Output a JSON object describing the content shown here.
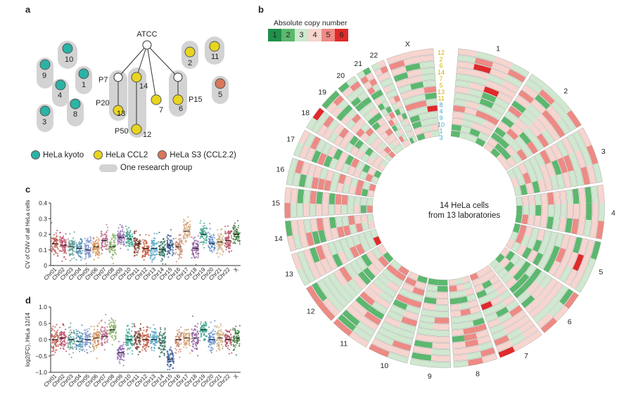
{
  "panels": {
    "a": "a",
    "b": "b",
    "c": "c",
    "d": "d"
  },
  "lineage": {
    "root": "ATCC",
    "nodes": [
      {
        "id": "P7",
        "label": "P7"
      },
      {
        "id": "14",
        "label": "14"
      },
      {
        "id": "P20",
        "label": "P20"
      },
      {
        "id": "13",
        "label": "13"
      },
      {
        "id": "P50",
        "label": "P50"
      },
      {
        "id": "12",
        "label": "12"
      },
      {
        "id": "7",
        "label": "7"
      },
      {
        "id": "P15",
        "label": "P15"
      },
      {
        "id": "6",
        "label": "6"
      }
    ],
    "singles": [
      {
        "label": "10",
        "type": "kyoto"
      },
      {
        "label": "9",
        "type": "kyoto"
      },
      {
        "label": "1",
        "type": "kyoto"
      },
      {
        "label": "4",
        "type": "kyoto"
      },
      {
        "label": "8",
        "type": "kyoto"
      },
      {
        "label": "3",
        "type": "kyoto"
      },
      {
        "label": "2",
        "type": "ccl2"
      },
      {
        "label": "11",
        "type": "ccl2"
      },
      {
        "label": "5",
        "type": "s3"
      }
    ],
    "legend": {
      "kyoto": "HeLa kyoto",
      "ccl2": "HeLa CCL2",
      "s3": "HeLa S3 (CCL2.2)",
      "group": "One research group"
    },
    "colors": {
      "kyoto": "#2bb3a6",
      "ccl2": "#e8d51e",
      "s3": "#d9775a",
      "group": "#d3d3d3"
    }
  },
  "colorkey": {
    "title": "Absolute copy number",
    "values": [
      "1",
      "2",
      "3",
      "4",
      "5",
      "6"
    ],
    "colors": [
      "#1f8f4a",
      "#5cb86e",
      "#cfe8cf",
      "#f7d5cf",
      "#ee8a84",
      "#e02a2a"
    ]
  },
  "circos": {
    "center_line1": "14 HeLa cells",
    "center_line2": "from 13 laboratories",
    "chromosomes": [
      "1",
      "2",
      "3",
      "4",
      "5",
      "6",
      "7",
      "8",
      "9",
      "10",
      "11",
      "12",
      "13",
      "14",
      "15",
      "16",
      "17",
      "18",
      "19",
      "20",
      "21",
      "22",
      "X"
    ],
    "sample_order": [
      "12",
      "2",
      "6",
      "14",
      "7",
      "5",
      "13",
      "11",
      "8",
      "4",
      "9",
      "10",
      "1",
      "3"
    ],
    "sample_colors": [
      "#d4b300",
      "#d4b300",
      "#d4b300",
      "#d4b300",
      "#d4b300",
      "#d4b300",
      "#d4b300",
      "#d4b300",
      "#3aa9d0",
      "#3aa9d0",
      "#3aa9d0",
      "#3aa9d0",
      "#3aa9d0",
      "#3aa9d0"
    ]
  },
  "chart_data": [
    {
      "type": "scatter",
      "title": "c",
      "ylabel": "CV of CNV of all HeLa cells",
      "ylim": [
        0,
        0.4
      ],
      "yticks": [
        "0",
        "0.1",
        "0.2",
        "0.3",
        "0.4"
      ],
      "categories": [
        "Chr01",
        "Chr02",
        "Chr03",
        "Chr04",
        "Chr05",
        "Chr06",
        "Chr07",
        "Chr08",
        "Chr09",
        "Chr10",
        "Chr11",
        "Chr12",
        "Chr13",
        "Chr14",
        "Chr15",
        "Chr16",
        "Chr17",
        "Chr18",
        "Chr19",
        "Chr20",
        "Chr21",
        "Chr22",
        "X"
      ],
      "medians": [
        0.14,
        0.13,
        0.12,
        0.11,
        0.1,
        0.12,
        0.16,
        0.12,
        0.18,
        0.17,
        0.14,
        0.11,
        0.11,
        0.1,
        0.13,
        0.12,
        0.22,
        0.11,
        0.2,
        0.14,
        0.15,
        0.16,
        0.2
      ]
    },
    {
      "type": "scatter",
      "title": "d",
      "ylabel": "log2(FC), HeLa 12/14",
      "ylim": [
        -1.0,
        1.0
      ],
      "yticks": [
        "−1.0",
        "−0.5",
        "0.0",
        "0.5",
        "1.0"
      ],
      "categories": [
        "Chr01",
        "Chr02",
        "Chr03",
        "Chr04",
        "Chr05",
        "Chr06",
        "Chr07",
        "Chr08",
        "Chr09",
        "Chr10",
        "Chr11",
        "Chr12",
        "Chr13",
        "Chr14",
        "Chr15",
        "Chr16",
        "Chr17",
        "Chr18",
        "Chr19",
        "Chr20",
        "Chr21",
        "Chr22",
        "X"
      ],
      "medians": [
        0.0,
        0.05,
        0.0,
        -0.05,
        0.0,
        0.05,
        0.1,
        0.3,
        -0.4,
        0.0,
        0.05,
        0.0,
        0.0,
        -0.1,
        -0.6,
        0.0,
        0.05,
        0.05,
        0.3,
        0.0,
        0.05,
        0.0,
        0.05
      ]
    }
  ]
}
